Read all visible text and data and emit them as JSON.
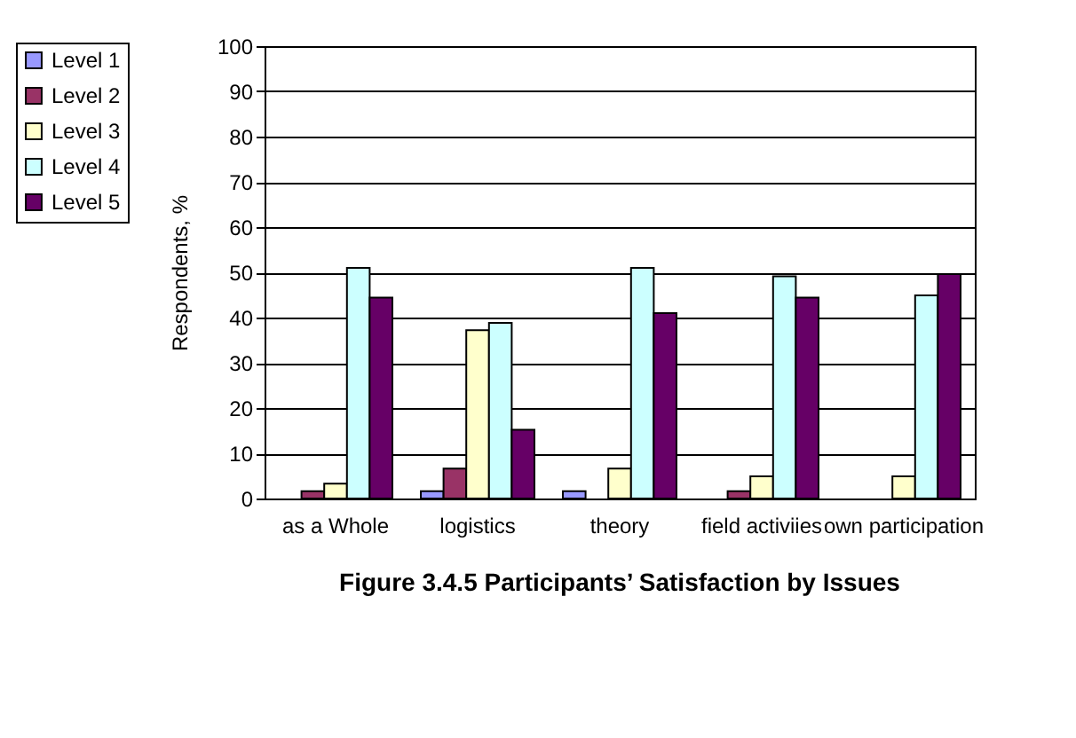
{
  "chart_data": {
    "type": "bar",
    "title": "Figure 3.4.5 Participants’ Satisfaction by Issues",
    "ylabel": "Respondents, %",
    "categories": [
      "as a Whole",
      "logistics",
      "theory",
      "field activiies",
      "own participation"
    ],
    "series": [
      {
        "name": "Level 1",
        "color": "#9999ff",
        "values": [
          0,
          1.6,
          1.6,
          0,
          0
        ]
      },
      {
        "name": "Level 2",
        "color": "#993366",
        "values": [
          1.6,
          6.6,
          0,
          1.6,
          0
        ]
      },
      {
        "name": "Level 3",
        "color": "#ffffcc",
        "values": [
          3.3,
          37.2,
          6.6,
          4.9,
          4.9
        ]
      },
      {
        "name": "Level 4",
        "color": "#ccffff",
        "values": [
          51,
          38.8,
          51,
          49.1,
          44.9
        ]
      },
      {
        "name": "Level 5",
        "color": "#660066",
        "values": [
          44.4,
          15.2,
          41,
          44.4,
          49.6
        ]
      }
    ],
    "ylim": [
      0,
      100
    ],
    "yticks": [
      0,
      10,
      20,
      30,
      40,
      50,
      60,
      70,
      80,
      90,
      100
    ],
    "grid": "y",
    "legend": "top left"
  }
}
